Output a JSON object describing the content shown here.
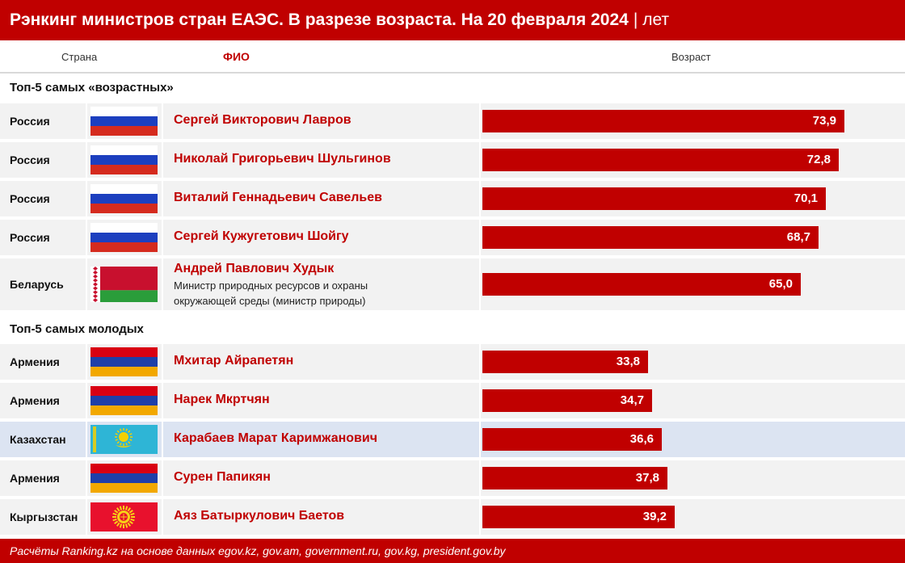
{
  "title": {
    "main": "Рэнкинг министров стран ЕАЭС. В разрезе возраста. На 20 февраля 2024",
    "separator": "|",
    "unit": "лет"
  },
  "columns": {
    "country": "Страна",
    "name": "ФИО",
    "age": "Возраст"
  },
  "colors": {
    "accent": "#c00000",
    "row_bg": "#f2f2f2",
    "highlight_bg": "#dce4f2"
  },
  "chart_data": {
    "type": "bar",
    "orientation": "horizontal",
    "title": "Рэнкинг министров стран ЕАЭС. В разрезе возраста. На 20 февраля 2024 | лет",
    "xlabel": "Возраст",
    "xlim": [
      0,
      80
    ],
    "grid": false,
    "groups": [
      {
        "label": "Топ-5 самых «возрастных»",
        "rows": [
          {
            "country": "Россия",
            "flag": "russia-flag",
            "name": "Сергей Викторович Лавров",
            "value": 73.9,
            "value_label": "73,9"
          },
          {
            "country": "Россия",
            "flag": "russia-flag",
            "name": "Николай Григорьевич Шульгинов",
            "value": 72.8,
            "value_label": "72,8"
          },
          {
            "country": "Россия",
            "flag": "russia-flag",
            "name": "Виталий Геннадьевич Савельев",
            "value": 70.1,
            "value_label": "70,1"
          },
          {
            "country": "Россия",
            "flag": "russia-flag",
            "name": "Сергей Кужугетович Шойгу",
            "value": 68.7,
            "value_label": "68,7"
          },
          {
            "country": "Беларусь",
            "flag": "belarus-flag",
            "name": "Андрей Павлович Худык",
            "position_line1": "Министр природных ресурсов и охраны",
            "position_line2": "окружающей среды (министр природы)",
            "value": 65.0,
            "value_label": "65,0"
          }
        ]
      },
      {
        "label": "Топ-5 самых молодых",
        "rows": [
          {
            "country": "Армения",
            "flag": "armenia-flag",
            "name": "Мхитар Айрапетян",
            "value": 33.8,
            "value_label": "33,8"
          },
          {
            "country": "Армения",
            "flag": "armenia-flag",
            "name": "Нарек Мкртчян",
            "value": 34.7,
            "value_label": "34,7"
          },
          {
            "country": "Казахстан",
            "flag": "kazakhstan-flag",
            "name": "Карабаев Марат Карimжанович",
            "value": 36.6,
            "value_label": "36,6",
            "highlighted": true
          },
          {
            "country": "Армения",
            "flag": "armenia-flag",
            "name": "Сурен Папикян",
            "value": 37.8,
            "value_label": "37,8"
          },
          {
            "country": "Кыргызстан",
            "flag": "kyrgyzstan-flag",
            "name": "Аяз Батыркулович Баетов",
            "value": 39.2,
            "value_label": "39,2"
          }
        ]
      }
    ]
  },
  "footer": "Расчёты Ranking.kz на основе данных egov.kz, gov.am, government.ru, gov.kg, president.gov.by"
}
